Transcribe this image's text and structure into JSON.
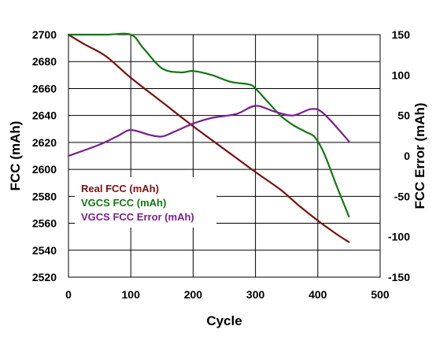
{
  "chart_data": {
    "type": "line",
    "xlabel": "Cycle",
    "ylabel": "FCC (mAh)",
    "y2label": "FCC Error (mAh)",
    "xlim": [
      0,
      500
    ],
    "ylim": [
      2520,
      2700
    ],
    "y2lim": [
      -150,
      150
    ],
    "x_ticks": [
      "0",
      "100",
      "200",
      "300",
      "400",
      "500"
    ],
    "y_ticks": [
      "2520",
      "2540",
      "2560",
      "2580",
      "2600",
      "2620",
      "2640",
      "2660",
      "2680",
      "2700"
    ],
    "y2_ticks": [
      "-150",
      "-100",
      "-50",
      "0",
      "50",
      "100",
      "150"
    ],
    "grid": true,
    "legend_position": "lower-left",
    "series": [
      {
        "name": "Real FCC (mAh)",
        "axis": "left",
        "color": "#7b1010",
        "x": [
          0,
          25,
          60,
          100,
          150,
          200,
          250,
          300,
          340,
          370,
          400,
          430,
          450
        ],
        "y": [
          2700,
          2693,
          2684,
          2668,
          2650,
          2632,
          2615,
          2598,
          2585,
          2573,
          2562,
          2552,
          2546
        ]
      },
      {
        "name": "VGCS FCC (mAh)",
        "axis": "left",
        "color": "#117711",
        "x": [
          0,
          60,
          100,
          120,
          150,
          180,
          200,
          230,
          260,
          290,
          300,
          320,
          340,
          360,
          380,
          395,
          410,
          430,
          450
        ],
        "y": [
          2700,
          2700,
          2700,
          2690,
          2675,
          2672,
          2673,
          2670,
          2665,
          2663,
          2660,
          2650,
          2640,
          2633,
          2628,
          2624,
          2612,
          2588,
          2565
        ]
      },
      {
        "name": "VGCS FCC Error (mAh)",
        "axis": "right",
        "color": "#7b1f8f",
        "x": [
          0,
          50,
          80,
          100,
          130,
          150,
          170,
          200,
          230,
          270,
          300,
          330,
          360,
          390,
          410,
          450
        ],
        "y": [
          0,
          14,
          25,
          32,
          26,
          24,
          30,
          40,
          47,
          52,
          62,
          55,
          50,
          58,
          52,
          18
        ]
      }
    ]
  }
}
